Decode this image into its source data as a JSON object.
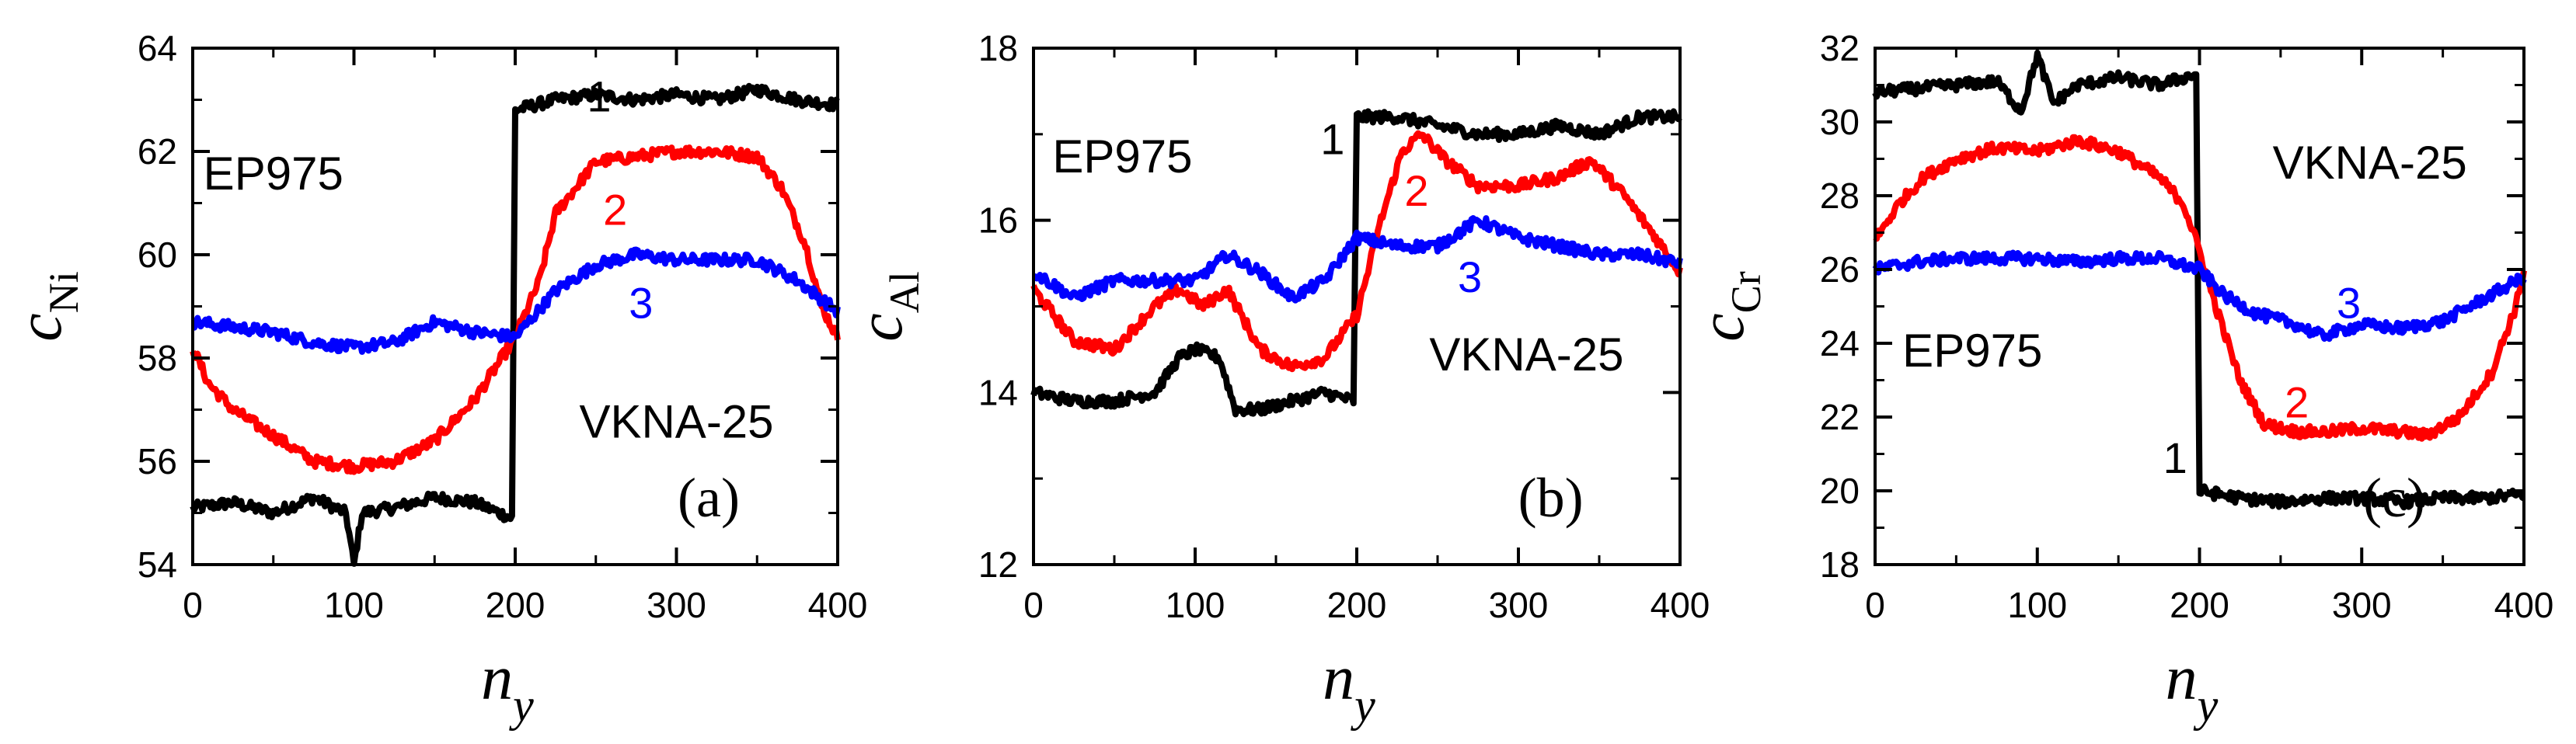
{
  "chart_data": [
    {
      "type": "line",
      "panel_label": "(a)",
      "xlabel": "n",
      "xlabel_sub": "y",
      "ylabel": "c",
      "ylabel_sub": "Ni",
      "xlim": [
        0,
        400
      ],
      "ylim": [
        54,
        64
      ],
      "xticks": [
        0,
        100,
        200,
        300,
        400
      ],
      "yticks": [
        54,
        56,
        58,
        60,
        62,
        64
      ],
      "annotations": [
        {
          "text": "EP975",
          "x": 50,
          "y": 61.5
        },
        {
          "text": "VKNA-25",
          "x": 300,
          "y": 56.7
        }
      ],
      "series": [
        {
          "name": "1",
          "color": "#000000",
          "label_at": [
            252,
            63.0
          ],
          "x": [
            0,
            25,
            50,
            75,
            95,
            100,
            105,
            125,
            150,
            175,
            198,
            200,
            225,
            250,
            275,
            300,
            325,
            350,
            375,
            400
          ],
          "y": [
            55.1,
            55.2,
            55.0,
            55.3,
            55.0,
            54.0,
            55.0,
            55.1,
            55.3,
            55.2,
            54.9,
            62.8,
            63.0,
            63.1,
            63.0,
            63.1,
            63.0,
            63.2,
            63.0,
            62.9
          ]
        },
        {
          "name": "2",
          "color": "#ff0000",
          "label_at": [
            262,
            60.8
          ],
          "x": [
            0,
            10,
            25,
            50,
            75,
            100,
            125,
            150,
            175,
            200,
            215,
            225,
            250,
            275,
            300,
            325,
            350,
            365,
            380,
            390,
            400
          ],
          "y": [
            58.2,
            57.5,
            57.0,
            56.5,
            56.0,
            55.9,
            56.0,
            56.4,
            57.2,
            58.4,
            59.5,
            60.8,
            61.8,
            61.9,
            62.0,
            62.0,
            61.9,
            61.3,
            60.2,
            59.0,
            58.4
          ]
        },
        {
          "name": "3",
          "color": "#0000ff",
          "label_at": [
            278,
            59.0
          ],
          "x": [
            0,
            25,
            50,
            75,
            100,
            125,
            150,
            175,
            200,
            225,
            250,
            275,
            300,
            325,
            350,
            375,
            400
          ],
          "y": [
            58.7,
            58.6,
            58.5,
            58.3,
            58.2,
            58.3,
            58.7,
            58.5,
            58.4,
            59.3,
            59.8,
            60.0,
            59.9,
            59.9,
            59.9,
            59.5,
            58.9
          ]
        }
      ]
    },
    {
      "type": "line",
      "panel_label": "(b)",
      "xlabel": "n",
      "xlabel_sub": "y",
      "ylabel": "c",
      "ylabel_sub": "Al",
      "xlim": [
        0,
        400
      ],
      "ylim": [
        12,
        18
      ],
      "xticks": [
        0,
        100,
        200,
        300,
        400
      ],
      "yticks": [
        12,
        14,
        16,
        18
      ],
      "annotations": [
        {
          "text": "EP975",
          "x": 55,
          "y": 16.7
        },
        {
          "text": "VKNA-25",
          "x": 305,
          "y": 14.4
        }
      ],
      "series": [
        {
          "name": "1",
          "color": "#000000",
          "label_at": [
            185,
            16.9
          ],
          "x": [
            0,
            25,
            50,
            75,
            90,
            100,
            115,
            125,
            140,
            160,
            180,
            198,
            200,
            225,
            250,
            275,
            300,
            325,
            350,
            375,
            400
          ],
          "y": [
            14.0,
            13.9,
            13.9,
            14.0,
            14.4,
            14.5,
            14.4,
            13.8,
            13.8,
            13.9,
            14.0,
            13.9,
            17.2,
            17.2,
            17.1,
            17.0,
            17.0,
            17.1,
            17.0,
            17.2,
            17.2
          ]
        },
        {
          "name": "2",
          "color": "#ff0000",
          "label_at": [
            237,
            16.3
          ],
          "x": [
            0,
            25,
            50,
            75,
            90,
            105,
            120,
            140,
            160,
            180,
            200,
            215,
            228,
            240,
            255,
            275,
            300,
            325,
            345,
            365,
            385,
            400
          ],
          "y": [
            15.2,
            14.6,
            14.5,
            15.0,
            15.2,
            15.0,
            15.2,
            14.5,
            14.3,
            14.4,
            14.9,
            16.0,
            16.8,
            17.0,
            16.7,
            16.4,
            16.4,
            16.5,
            16.7,
            16.3,
            15.8,
            15.4
          ]
        },
        {
          "name": "3",
          "color": "#0000ff",
          "label_at": [
            270,
            15.3
          ],
          "x": [
            0,
            25,
            50,
            75,
            100,
            120,
            140,
            160,
            180,
            200,
            225,
            250,
            275,
            300,
            325,
            350,
            375,
            400
          ],
          "y": [
            15.4,
            15.1,
            15.3,
            15.3,
            15.3,
            15.6,
            15.4,
            15.1,
            15.3,
            15.8,
            15.7,
            15.7,
            16.0,
            15.8,
            15.7,
            15.6,
            15.6,
            15.5
          ]
        }
      ]
    },
    {
      "type": "line",
      "panel_label": "(c)",
      "xlabel": "n",
      "xlabel_sub": "y",
      "ylabel": "c",
      "ylabel_sub": "Cr",
      "xlim": [
        0,
        400
      ],
      "ylim": [
        18,
        32
      ],
      "xticks": [
        0,
        100,
        200,
        300,
        400
      ],
      "yticks": [
        18,
        20,
        22,
        24,
        26,
        28,
        30,
        32
      ],
      "annotations": [
        {
          "text": "VKNA-25",
          "x": 305,
          "y": 28.8
        },
        {
          "text": "EP975",
          "x": 60,
          "y": 23.7
        }
      ],
      "series": [
        {
          "name": "1",
          "color": "#000000",
          "label_at": [
            185,
            20.8
          ],
          "x": [
            0,
            25,
            50,
            75,
            90,
            100,
            110,
            125,
            150,
            175,
            198,
            200,
            225,
            250,
            275,
            300,
            325,
            350,
            375,
            400
          ],
          "y": [
            30.8,
            30.9,
            31.0,
            31.1,
            30.3,
            31.8,
            30.5,
            31.0,
            31.2,
            31.0,
            31.3,
            20.0,
            19.8,
            19.7,
            19.8,
            19.8,
            19.7,
            19.8,
            19.8,
            19.9
          ]
        },
        {
          "name": "2",
          "color": "#ff0000",
          "label_at": [
            260,
            22.3
          ],
          "x": [
            0,
            15,
            30,
            50,
            75,
            100,
            125,
            150,
            175,
            190,
            200,
            210,
            225,
            240,
            260,
            280,
            300,
            325,
            340,
            360,
            380,
            395,
            400
          ],
          "y": [
            26.8,
            27.8,
            28.5,
            29.0,
            29.3,
            29.2,
            29.5,
            29.2,
            28.5,
            27.8,
            26.5,
            25.0,
            23.0,
            21.8,
            21.6,
            21.6,
            21.7,
            21.6,
            21.5,
            22.0,
            23.2,
            25.0,
            26.0
          ]
        },
        {
          "name": "3",
          "color": "#0000ff",
          "label_at": [
            292,
            25.0
          ],
          "x": [
            0,
            25,
            50,
            75,
            100,
            125,
            150,
            175,
            200,
            215,
            235,
            260,
            275,
            300,
            325,
            350,
            375,
            400
          ],
          "y": [
            26.0,
            26.2,
            26.3,
            26.3,
            26.3,
            26.2,
            26.3,
            26.3,
            26.0,
            25.3,
            24.8,
            24.5,
            24.2,
            24.5,
            24.4,
            24.6,
            25.2,
            25.8
          ]
        }
      ]
    }
  ]
}
